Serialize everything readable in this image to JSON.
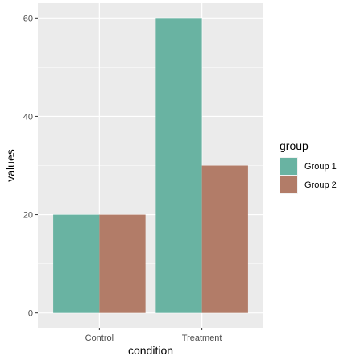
{
  "chart_data": {
    "type": "bar",
    "categories": [
      "Control",
      "Treatment"
    ],
    "series": [
      {
        "name": "Group 1",
        "values": [
          20,
          60
        ],
        "color": "#69b3a2"
      },
      {
        "name": "Group 2",
        "values": [
          20,
          30
        ],
        "color": "#b27c68"
      }
    ],
    "xlabel": "condition",
    "ylabel": "values",
    "ylim": [
      -3,
      63
    ],
    "yticks": [
      0,
      20,
      40,
      60
    ],
    "legend": {
      "title": "group",
      "position": "right"
    },
    "grid": true,
    "panel_background": "#ebebeb"
  }
}
